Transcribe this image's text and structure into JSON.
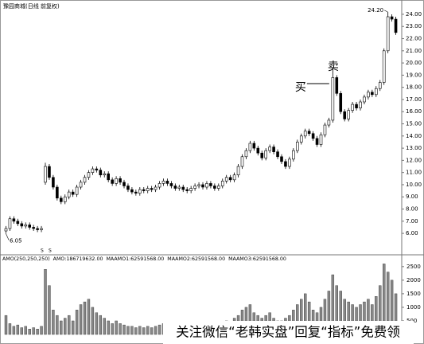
{
  "chart_data": {
    "type": "candlestick",
    "title": "豫园商城(日线 前复权)",
    "open": [
      6.2,
      6.4,
      7.2,
      7.0,
      6.8,
      6.6,
      6.7,
      6.5,
      6.4,
      6.3,
      10.2,
      11.5,
      10.6,
      9.8,
      8.9,
      8.6,
      9.0,
      9.4,
      9.2,
      9.8,
      10.2,
      10.6,
      11.0,
      11.3,
      11.2,
      10.8,
      10.9,
      10.4,
      10.1,
      10.5,
      10.2,
      9.9,
      9.6,
      9.4,
      9.3,
      9.6,
      9.5,
      9.7,
      9.6,
      9.8,
      10.1,
      10.3,
      10.1,
      9.9,
      9.7,
      9.8,
      9.6,
      9.5,
      9.7,
      9.9,
      10.0,
      9.8,
      10.1,
      9.9,
      9.7,
      9.9,
      10.3,
      10.6,
      10.4,
      10.8,
      11.5,
      12.3,
      12.8,
      13.4,
      13.0,
      12.6,
      12.2,
      12.8,
      13.1,
      12.7,
      12.3,
      11.9,
      11.5,
      12.1,
      12.8,
      13.5,
      14.0,
      14.4,
      14.2,
      13.8,
      13.3,
      14.1,
      14.9,
      15.3,
      18.8,
      17.5,
      16.0,
      15.4,
      16.1,
      16.6,
      16.3,
      16.8,
      17.2,
      17.6,
      17.4,
      17.9,
      18.4,
      21.0,
      23.8,
      23.6
    ],
    "high": [
      6.6,
      7.4,
      7.4,
      7.2,
      7.0,
      6.9,
      6.9,
      6.7,
      6.6,
      6.6,
      11.8,
      11.7,
      10.8,
      10.0,
      9.1,
      9.2,
      9.6,
      9.6,
      10.0,
      10.4,
      10.8,
      11.2,
      11.5,
      11.5,
      11.4,
      11.1,
      11.1,
      10.6,
      10.7,
      10.7,
      10.4,
      10.1,
      9.8,
      9.6,
      9.8,
      9.8,
      9.9,
      9.9,
      10.0,
      10.3,
      10.5,
      10.5,
      10.3,
      10.1,
      10.0,
      10.0,
      9.8,
      9.9,
      10.1,
      10.2,
      10.2,
      10.3,
      10.3,
      10.1,
      10.1,
      10.5,
      10.8,
      10.8,
      11.0,
      11.7,
      12.5,
      13.0,
      13.6,
      13.6,
      13.2,
      12.8,
      13.0,
      13.3,
      13.3,
      12.9,
      12.5,
      12.1,
      12.3,
      13.0,
      13.7,
      14.2,
      14.6,
      14.6,
      14.4,
      14.0,
      14.3,
      15.1,
      15.5,
      19.6,
      19.0,
      17.7,
      16.2,
      16.3,
      16.8,
      16.8,
      17.0,
      17.4,
      17.8,
      17.8,
      18.1,
      18.6,
      21.2,
      24.2,
      24.0,
      23.8
    ],
    "low": [
      6.05,
      6.2,
      6.8,
      6.6,
      6.4,
      6.4,
      6.3,
      6.2,
      6.1,
      6.1,
      10.0,
      10.4,
      9.6,
      8.7,
      8.4,
      8.4,
      8.8,
      9.0,
      9.0,
      9.6,
      10.0,
      10.4,
      10.8,
      11.0,
      10.6,
      10.6,
      10.2,
      9.9,
      9.9,
      10.0,
      9.7,
      9.4,
      9.2,
      9.1,
      9.1,
      9.3,
      9.3,
      9.4,
      9.4,
      9.6,
      9.9,
      9.9,
      9.7,
      9.5,
      9.5,
      9.4,
      9.3,
      9.3,
      9.5,
      9.7,
      9.6,
      9.6,
      9.7,
      9.5,
      9.5,
      9.7,
      10.1,
      10.2,
      10.2,
      10.6,
      11.3,
      12.1,
      12.6,
      12.8,
      12.4,
      12.0,
      12.0,
      12.6,
      12.5,
      12.1,
      11.7,
      11.3,
      11.3,
      11.9,
      12.6,
      13.3,
      13.8,
      14.0,
      13.6,
      13.1,
      13.1,
      13.9,
      14.7,
      15.1,
      17.3,
      15.8,
      15.2,
      15.2,
      15.9,
      16.1,
      16.1,
      16.6,
      17.0,
      17.2,
      17.2,
      17.7,
      18.2,
      20.8,
      23.4,
      22.3
    ],
    "close": [
      6.4,
      7.2,
      7.0,
      6.8,
      6.6,
      6.7,
      6.5,
      6.4,
      6.3,
      6.4,
      11.5,
      10.6,
      9.8,
      8.9,
      8.6,
      9.0,
      9.4,
      9.2,
      9.8,
      10.2,
      10.6,
      11.0,
      11.3,
      11.2,
      10.8,
      10.9,
      10.4,
      10.1,
      10.5,
      10.2,
      9.9,
      9.6,
      9.4,
      9.3,
      9.6,
      9.5,
      9.7,
      9.6,
      9.8,
      10.1,
      10.3,
      10.1,
      9.9,
      9.7,
      9.8,
      9.6,
      9.5,
      9.7,
      9.9,
      10.0,
      9.8,
      10.1,
      9.9,
      9.7,
      9.9,
      10.3,
      10.6,
      10.4,
      10.8,
      11.5,
      12.3,
      12.8,
      13.4,
      13.0,
      12.6,
      12.2,
      12.8,
      13.1,
      12.7,
      12.3,
      11.9,
      11.5,
      12.1,
      12.8,
      13.5,
      14.0,
      14.4,
      14.2,
      13.8,
      13.3,
      14.1,
      14.9,
      15.3,
      18.8,
      17.5,
      16.0,
      15.4,
      16.1,
      16.6,
      16.3,
      16.8,
      17.2,
      17.6,
      17.4,
      17.9,
      18.4,
      21.0,
      23.8,
      23.6,
      22.5
    ],
    "ylim": [
      4.37,
      24.52
    ],
    "yticks": [
      {
        "value": 24,
        "label": "24.00"
      },
      {
        "value": 23,
        "label": "23.00"
      },
      {
        "value": 22,
        "label": "22.00"
      },
      {
        "value": 21,
        "label": "21.00"
      },
      {
        "value": 20,
        "label": "20.00"
      },
      {
        "value": 19,
        "label": "19.00"
      },
      {
        "value": 18,
        "label": "18.00"
      },
      {
        "value": 17,
        "label": "17.00"
      },
      {
        "value": 16,
        "label": "16.00"
      },
      {
        "value": 15,
        "label": "15.00"
      },
      {
        "value": 14,
        "label": "14.00"
      },
      {
        "value": 13,
        "label": "13.00"
      },
      {
        "value": 12,
        "label": "12.00"
      },
      {
        "value": 11,
        "label": "11.00"
      },
      {
        "value": 10,
        "label": "10.00"
      },
      {
        "value": 9,
        "label": "9.00"
      },
      {
        "value": 8,
        "label": "8.00"
      },
      {
        "value": 7,
        "label": "7.00"
      },
      {
        "value": 6,
        "label": "6.00"
      }
    ],
    "annotations": [
      {
        "text": "24.20",
        "value": 24.2,
        "index": 97
      },
      {
        "text": "6.05",
        "value": 6.05,
        "index": 0
      },
      {
        "text": "卖",
        "index": 83
      },
      {
        "text": "买",
        "index": 83
      }
    ],
    "markers": [
      "S",
      "S"
    ],
    "volume": {
      "legend": [
        "AMO(250,250,250)",
        "AMO:186719632.00",
        "MAAMO1:62591568.00",
        "MAAMO2:62591568.00",
        "MAAMO3:62591568.00"
      ],
      "color": "#888888",
      "values": [
        700,
        400,
        300,
        350,
        250,
        300,
        200,
        250,
        200,
        300,
        2400,
        1800,
        900,
        700,
        500,
        600,
        700,
        500,
        900,
        1100,
        1200,
        1300,
        1000,
        800,
        700,
        600,
        500,
        400,
        500,
        400,
        350,
        300,
        300,
        250,
        300,
        250,
        300,
        250,
        300,
        350,
        400,
        350,
        300,
        250,
        300,
        250,
        250,
        300,
        350,
        400,
        300,
        350,
        300,
        250,
        300,
        400,
        500,
        450,
        600,
        700,
        900,
        1000,
        1100,
        800,
        700,
        600,
        700,
        800,
        600,
        500,
        500,
        600,
        700,
        900,
        1100,
        1300,
        1500,
        1200,
        900,
        800,
        1000,
        1300,
        1600,
        2200,
        1800,
        1600,
        1300,
        1200,
        1100,
        1000,
        1100,
        1200,
        1300,
        1100,
        1400,
        1800,
        2600,
        2300,
        2000,
        1500
      ],
      "ylim": [
        0,
        2700
      ],
      "yticks": [
        2500,
        2000,
        1500,
        1000,
        500
      ]
    },
    "watermark": "关注微信“老韩实盘”回复“指标”免费领"
  }
}
